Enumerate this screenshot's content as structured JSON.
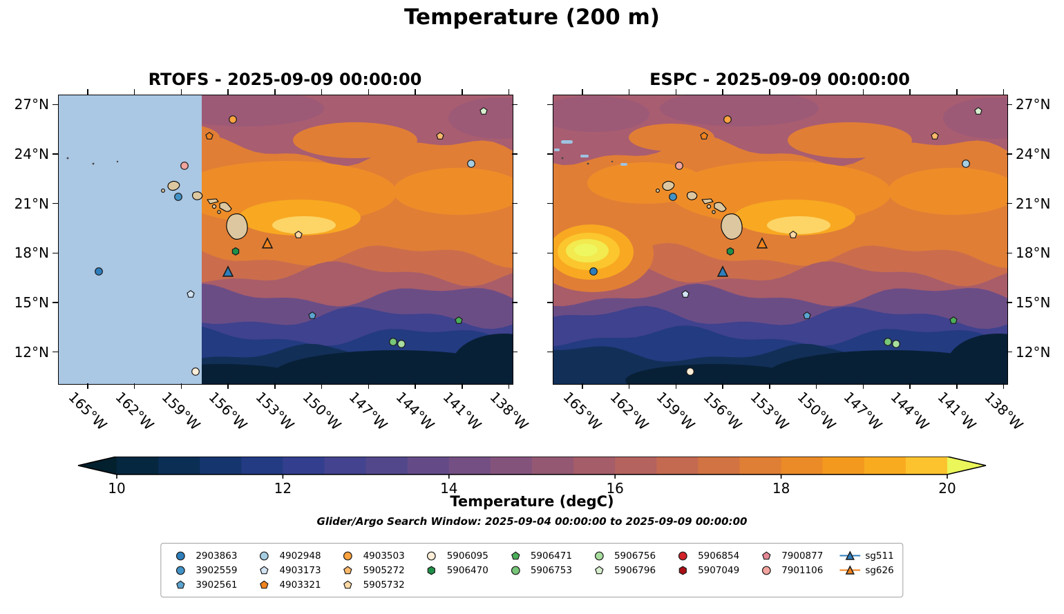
{
  "figure": {
    "title": "Temperature (200 m)"
  },
  "chart_data": {
    "type": "heatmap",
    "title": "Temperature (200 m)",
    "panels": [
      {
        "model": "RTOFS",
        "title": "RTOFS - 2025-09-09 00:00:00",
        "valid_time": "2025-09-09 00:00:00",
        "masked_until_lon": -157.7,
        "mask_color": "#aac7e4"
      },
      {
        "model": "ESPC",
        "title": "ESPC - 2025-09-09 00:00:00",
        "valid_time": "2025-09-09 00:00:00"
      }
    ],
    "extent": {
      "lon_min": -166.9,
      "lon_max": -137.8,
      "lat_min": 10.1,
      "lat_max": 27.6
    },
    "lon_ticks": [
      {
        "value": -165,
        "label": "165°W"
      },
      {
        "value": -162,
        "label": "162°W"
      },
      {
        "value": -159,
        "label": "159°W"
      },
      {
        "value": -156,
        "label": "156°W"
      },
      {
        "value": -153,
        "label": "153°W"
      },
      {
        "value": -150,
        "label": "150°W"
      },
      {
        "value": -147,
        "label": "147°W"
      },
      {
        "value": -144,
        "label": "144°W"
      },
      {
        "value": -141,
        "label": "141°W"
      },
      {
        "value": -138,
        "label": "138°W"
      }
    ],
    "lat_ticks": [
      {
        "value": 27,
        "label": "27°N"
      },
      {
        "value": 24,
        "label": "24°N"
      },
      {
        "value": 21,
        "label": "21°N"
      },
      {
        "value": 18,
        "label": "18°N"
      },
      {
        "value": 15,
        "label": "15°N"
      },
      {
        "value": 12,
        "label": "12°N"
      }
    ],
    "colorbar": {
      "label": "Temperature (degC)",
      "min": 10,
      "max": 20,
      "tick_values": [
        10,
        12,
        14,
        16,
        18,
        20
      ],
      "tick_labels": [
        "10",
        "12",
        "14",
        "16",
        "18",
        "20"
      ],
      "under_color": "#03202e",
      "over_color": "#ebf65a",
      "segment_colors": [
        "#062740",
        "#0b2e55",
        "#15356e",
        "#233b82",
        "#333f8e",
        "#43438f",
        "#53478c",
        "#644b88",
        "#744f83",
        "#84537c",
        "#945873",
        "#a45d69",
        "#b4635e",
        "#c36a51",
        "#d17343",
        "#df7e35",
        "#eb8b27",
        "#f39a1e",
        "#f9ab20",
        "#fcc32f"
      ]
    },
    "search_window_text": "Glider/Argo Search Window: 2025-09-04 00:00:00 to 2025-09-09 00:00:00",
    "platforms": [
      {
        "id": "2903863",
        "marker": "circle",
        "color": "#2e7ebc",
        "lon": -164.3,
        "lat": 16.9
      },
      {
        "id": "3902559",
        "marker": "circle",
        "color": "#4292c6",
        "lon": -159.2,
        "lat": 21.4
      },
      {
        "id": "3902561",
        "marker": "pentagon",
        "color": "#5ca4d0",
        "lon": -150.6,
        "lat": 14.2
      },
      {
        "id": "4902948",
        "marker": "circle",
        "color": "#a6cee3",
        "lon": -140.4,
        "lat": 23.4
      },
      {
        "id": "4903173",
        "marker": "pentagon",
        "color": "#d2e4f3",
        "lon": -158.4,
        "lat": 15.5
      },
      {
        "id": "4903321",
        "marker": "pentagon",
        "color": "#f0831e",
        "lon": -157.2,
        "lat": 25.1
      },
      {
        "id": "4903503",
        "marker": "circle",
        "color": "#fda33f",
        "lon": -155.7,
        "lat": 26.1
      },
      {
        "id": "5905272",
        "marker": "pentagon",
        "color": "#fdb96b",
        "lon": -142.4,
        "lat": 25.1
      },
      {
        "id": "5905732",
        "marker": "pentagon",
        "color": "#fdd9a6",
        "lon": -151.5,
        "lat": 19.1
      },
      {
        "id": "5906095",
        "marker": "circle",
        "color": "#feeed8",
        "lon": -158.1,
        "lat": 10.8
      },
      {
        "id": "5906470",
        "marker": "hexagon",
        "color": "#1f9048",
        "lon": -155.5,
        "lat": 18.1
      },
      {
        "id": "5906471",
        "marker": "pentagon",
        "color": "#4bae5a",
        "lon": -141.2,
        "lat": 13.9
      },
      {
        "id": "5906753",
        "marker": "circle",
        "color": "#78c679",
        "lon": -145.4,
        "lat": 12.6
      },
      {
        "id": "5906756",
        "marker": "circle",
        "color": "#a8dd9e",
        "lon": -144.9,
        "lat": 12.5
      },
      {
        "id": "5906796",
        "marker": "pentagon",
        "color": "#d8efcf",
        "lon": -139.6,
        "lat": 26.6
      },
      {
        "id": "5906854",
        "marker": "circle",
        "color": "#d2222a",
        "lon": null,
        "lat": null
      },
      {
        "id": "5907049",
        "marker": "hexagon",
        "color": "#aa1016",
        "lon": null,
        "lat": null
      },
      {
        "id": "7900877",
        "marker": "pentagon",
        "color": "#e58896",
        "lon": null,
        "lat": null
      },
      {
        "id": "7901106",
        "marker": "circle",
        "color": "#f2a49e",
        "lon": -158.8,
        "lat": 23.3
      },
      {
        "id": "sg511",
        "marker": "triangle",
        "color": "#2e7ebc",
        "lon": -156.0,
        "lat": 16.9,
        "glider": true
      },
      {
        "id": "sg626",
        "marker": "triangle",
        "color": "#f0831e",
        "lon": -153.5,
        "lat": 18.6,
        "glider": true
      }
    ],
    "legend_columns": [
      [
        "2903863",
        "3902559",
        "3902561"
      ],
      [
        "4902948",
        "4903173",
        "4903321"
      ],
      [
        "4903503",
        "5905272",
        "5905732"
      ],
      [
        "5906095",
        "5906470"
      ],
      [
        "5906471",
        "5906753"
      ],
      [
        "5906756",
        "5906796"
      ],
      [
        "5906854",
        "5907049"
      ],
      [
        "7900877",
        "7901106"
      ],
      [
        "sg511",
        "sg626"
      ]
    ]
  }
}
